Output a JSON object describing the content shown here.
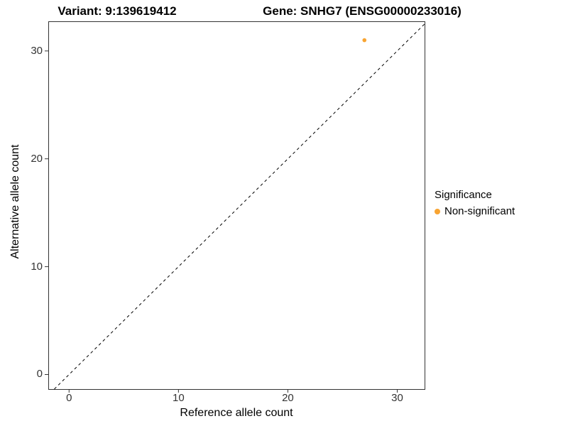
{
  "chart_data": {
    "type": "scatter",
    "title_left": "Variant: 9:139619412",
    "title_right": "Gene: SNHG7 (ENSG00000233016)",
    "xlabel": "Reference allele count",
    "ylabel": "Alternative allele count",
    "xlim": [
      -1.9,
      32.5
    ],
    "ylim": [
      -1.35,
      32.75
    ],
    "xticks": [
      0,
      10,
      20,
      30
    ],
    "yticks": [
      0,
      10,
      20,
      30
    ],
    "grid": false,
    "panel_border_color": "#333333",
    "identity_line": {
      "slope": 1,
      "intercept": 0,
      "style": "dashed",
      "color": "#000000"
    },
    "series": [
      {
        "name": "Non-significant",
        "color": "#F8A432",
        "points": [
          {
            "x": 27,
            "y": 31
          }
        ]
      }
    ],
    "legend": {
      "title": "Significance",
      "position": "right",
      "entries": [
        {
          "label": "Non-significant",
          "color": "#F8A432"
        }
      ]
    }
  }
}
